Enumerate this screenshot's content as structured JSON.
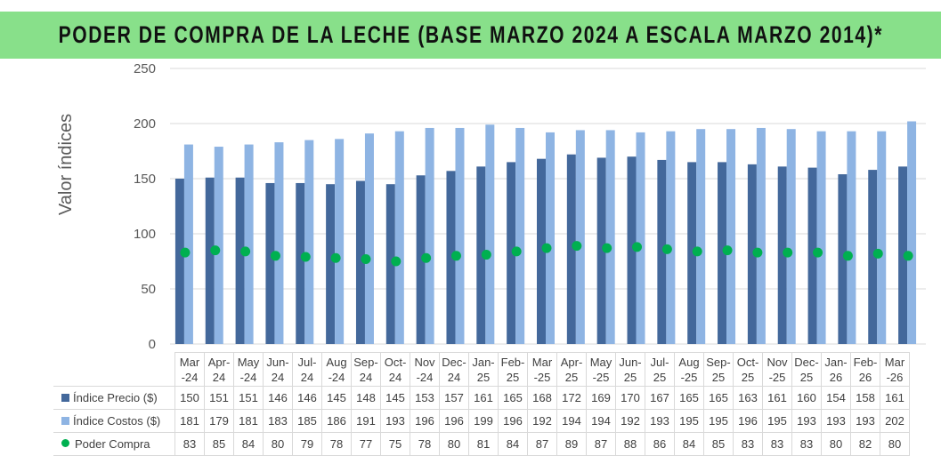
{
  "chart_data": {
    "type": "bar",
    "title": "PODER DE COMPRA DE LA LECHE (BASE MARZO 2024 A ESCALA MARZO 2014)*",
    "ylabel": "Valor índices",
    "ylim": [
      0,
      250
    ],
    "yticks": [
      0,
      50,
      100,
      150,
      200,
      250
    ],
    "grid": true,
    "categories": [
      "Mar\n-24",
      "Apr-\n24",
      "May\n-24",
      "Jun-\n24",
      "Jul-\n24",
      "Aug\n-24",
      "Sep-\n24",
      "Oct-\n24",
      "Nov\n-24",
      "Dec-\n24",
      "Jan-\n25",
      "Feb-\n25",
      "Mar\n-25",
      "Apr-\n25",
      "May\n-25",
      "Jun-\n25",
      "Jul-\n25",
      "Aug\n-25",
      "Sep-\n25",
      "Oct-\n25",
      "Nov\n-25",
      "Dec-\n25",
      "Jan-\n26",
      "Feb-\n26",
      "Mar\n-26"
    ],
    "series": [
      {
        "name": "Índice Precio ($)",
        "type": "bar",
        "color": "#43689B",
        "values": [
          150,
          151,
          151,
          146,
          146,
          145,
          148,
          145,
          153,
          157,
          161,
          165,
          168,
          172,
          169,
          170,
          167,
          165,
          165,
          163,
          161,
          160,
          154,
          158,
          161
        ]
      },
      {
        "name": "Índice Costos ($)",
        "type": "bar",
        "color": "#8EB4E3",
        "values": [
          181,
          179,
          181,
          183,
          185,
          186,
          191,
          193,
          196,
          196,
          199,
          196,
          192,
          194,
          194,
          192,
          193,
          195,
          195,
          196,
          195,
          193,
          193,
          193,
          202
        ]
      },
      {
        "name": "Poder Compra",
        "type": "scatter",
        "color": "#00B050",
        "values": [
          83,
          85,
          84,
          80,
          79,
          78,
          77,
          75,
          78,
          80,
          81,
          84,
          87,
          89,
          87,
          88,
          86,
          84,
          85,
          83,
          83,
          83,
          80,
          82,
          80
        ]
      }
    ],
    "legend": "data-table"
  }
}
